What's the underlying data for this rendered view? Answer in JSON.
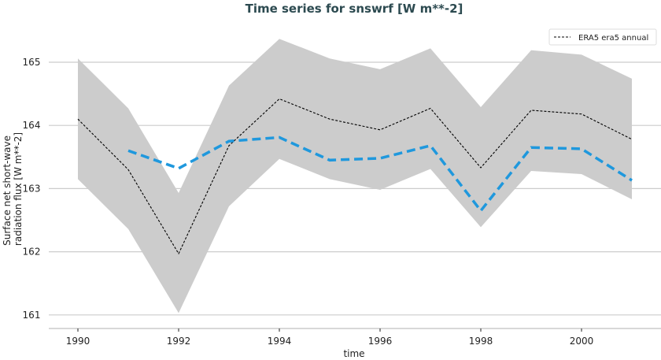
{
  "chart_data": {
    "type": "line",
    "title": "Time series for snswrf [W m**-2]",
    "xlabel": "time",
    "ylabel_lines": [
      "Surface net short-wave",
      "radiation flux [W m**-2]"
    ],
    "xlim": [
      1989.6,
      2001.6
    ],
    "ylim": [
      160.8,
      165.6
    ],
    "xticks": [
      1990,
      1992,
      1994,
      1996,
      1998,
      2000
    ],
    "yticks": [
      161,
      162,
      163,
      164,
      165
    ],
    "grid": "horizontal",
    "legend_position": "top-right",
    "x": [
      1990,
      1991,
      1992,
      1993,
      1994,
      1995,
      1996,
      1997,
      1998,
      1999,
      2000,
      2001
    ],
    "band": {
      "color": "#cccccc",
      "upper": [
        165.06,
        164.27,
        162.93,
        164.63,
        165.37,
        165.06,
        164.89,
        165.22,
        164.29,
        165.19,
        165.12,
        164.74
      ],
      "lower": [
        163.15,
        162.36,
        161.03,
        162.72,
        163.47,
        163.15,
        162.98,
        163.31,
        162.39,
        163.28,
        163.23,
        162.83
      ]
    },
    "series": [
      {
        "name": "ERA5 era5 annual",
        "color": "#000000",
        "style": "dashed-thin",
        "values": [
          164.1,
          163.3,
          161.97,
          163.68,
          164.42,
          164.1,
          163.93,
          164.27,
          163.33,
          164.24,
          164.18,
          163.78
        ]
      },
      {
        "color": "#1f98dd",
        "style": "dashed-thick",
        "values": [
          null,
          163.6,
          163.32,
          163.75,
          163.81,
          163.45,
          163.48,
          163.68,
          162.65,
          163.65,
          163.63,
          163.13
        ]
      }
    ]
  }
}
